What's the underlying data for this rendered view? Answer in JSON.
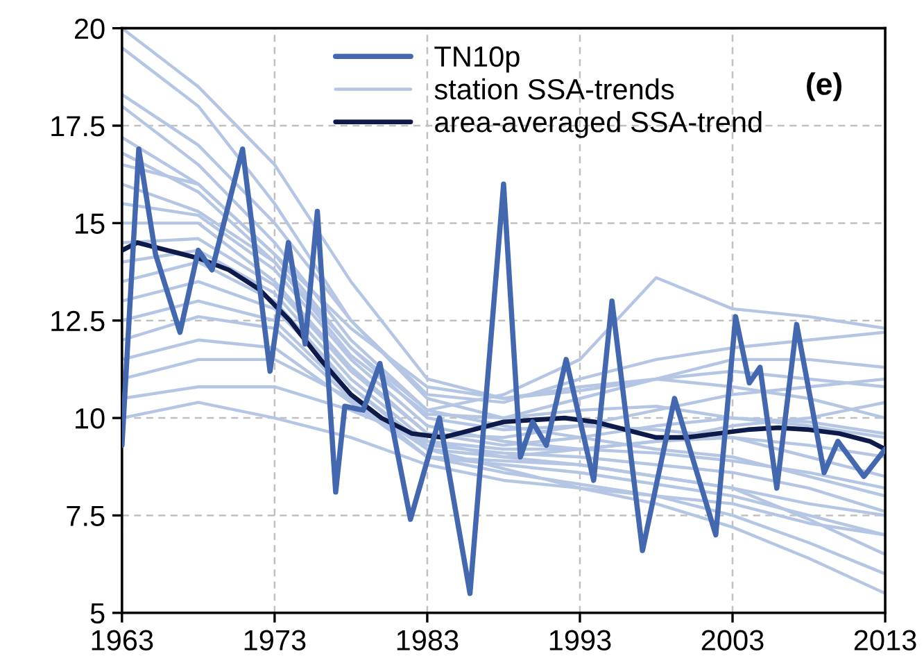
{
  "chart_data": {
    "type": "line",
    "annotations": [
      "(e)"
    ],
    "xlim": [
      1963,
      2013
    ],
    "xticks": [
      1963,
      1973,
      1983,
      1993,
      2003,
      2013
    ],
    "ylim": [
      5,
      20
    ],
    "yticks": [
      5,
      7.5,
      10,
      12.5,
      15,
      17.5,
      20
    ],
    "grid": true,
    "legend": "top",
    "line_style": "solid",
    "marker": "none",
    "series": [
      {
        "name": "TN10p",
        "color": "#4468b0",
        "x": [
          1963,
          1964.1,
          1965.2,
          1966.8,
          1968,
          1968.9,
          1970.9,
          1972.7,
          1973.9,
          1975,
          1975.8,
          1977,
          1977.6,
          1978.8,
          1979.9,
          1981.9,
          1983.8,
          1985.8,
          1988,
          1989.1,
          1989.9,
          1990.8,
          1992.1,
          1993.9,
          1995.1,
          1997.1,
          1999.2,
          2001.9,
          2003.2,
          2004.1,
          2004.8,
          2005.9,
          2007.2,
          2009,
          2009.9,
          2011.6,
          2013
        ],
        "values": [
          9.3,
          16.9,
          14.2,
          12.2,
          14.3,
          13.8,
          16.9,
          11.2,
          14.5,
          11.9,
          15.3,
          8.1,
          10.3,
          10.2,
          11.4,
          7.4,
          10.0,
          5.5,
          16.0,
          9.0,
          9.9,
          9.3,
          11.5,
          8.4,
          13.0,
          6.6,
          10.5,
          7.0,
          12.6,
          10.9,
          11.3,
          8.2,
          12.4,
          8.6,
          9.4,
          8.5,
          9.2
        ]
      },
      {
        "name": "station SSA-trends",
        "color": "#b4c6e4",
        "x": [
          1963,
          1968,
          1973,
          1978,
          1983,
          1988,
          1993,
          1998,
          2003,
          2008,
          2013
        ],
        "values": [
          20,
          18.5,
          16.5,
          13.5,
          11,
          10.5,
          10.8,
          11,
          10.8,
          10.5,
          10
        ]
      },
      {
        "name": "area-averaged SSA-trend",
        "color": "#0d1a4a",
        "x": [
          1963,
          1964,
          1966,
          1968,
          1970,
          1972,
          1974,
          1976,
          1978,
          1980,
          1982,
          1984,
          1986,
          1988,
          1990,
          1992,
          1994,
          1996,
          1998,
          2000,
          2002,
          2004,
          2006,
          2008,
          2010,
          2012,
          2013
        ],
        "values": [
          14.3,
          14.5,
          14.3,
          14.1,
          13.8,
          13.3,
          12.5,
          11.5,
          10.6,
          10.0,
          9.6,
          9.5,
          9.7,
          9.9,
          9.95,
          10.0,
          9.9,
          9.7,
          9.5,
          9.5,
          9.6,
          9.7,
          9.75,
          9.7,
          9.6,
          9.4,
          9.2
        ]
      },
      {
        "color": "#b4c6e4",
        "x": [
          1963,
          1968,
          1973,
          1978,
          1983,
          1988,
          1993,
          1998,
          2003,
          2008,
          2013
        ],
        "values": [
          19.5,
          18,
          15.5,
          12.5,
          10.5,
          10,
          10.2,
          10.3,
          10,
          9.8,
          9.5
        ]
      },
      {
        "color": "#b4c6e4",
        "x": [
          1963,
          1968,
          1973,
          1978,
          1983,
          1988,
          1993,
          1998,
          2003,
          2008,
          2013
        ],
        "values": [
          18.3,
          17,
          15,
          12.5,
          10.6,
          10.4,
          11,
          11.5,
          11.8,
          12,
          12.2
        ]
      },
      {
        "color": "#b4c6e4",
        "x": [
          1963,
          1968,
          1973,
          1978,
          1983,
          1988,
          1993,
          1998,
          2003,
          2008,
          2013
        ],
        "values": [
          18,
          16.5,
          14.5,
          12,
          10.2,
          10.6,
          11.5,
          13.6,
          12.8,
          12.6,
          12.3
        ]
      },
      {
        "color": "#b4c6e4",
        "x": [
          1963,
          1968,
          1973,
          1978,
          1983,
          1988,
          1993,
          1998,
          2003,
          2008,
          2013
        ],
        "values": [
          17.2,
          16,
          14.2,
          11.8,
          10,
          9.7,
          9.8,
          9.7,
          9.5,
          9,
          8.5
        ]
      },
      {
        "color": "#b4c6e4",
        "x": [
          1963,
          1968,
          1973,
          1978,
          1983,
          1988,
          1993,
          1998,
          2003,
          2008,
          2013
        ],
        "values": [
          16.8,
          15.8,
          14,
          11.6,
          10.1,
          10,
          10.5,
          11,
          11.5,
          11.5,
          11.3
        ]
      },
      {
        "color": "#b4c6e4",
        "x": [
          1963,
          1968,
          1973,
          1978,
          1983,
          1988,
          1993,
          1998,
          2003,
          2008,
          2013
        ],
        "values": [
          16,
          15.3,
          14,
          11.8,
          10.2,
          9.8,
          9.5,
          9.2,
          9,
          8.5,
          8
        ]
      },
      {
        "color": "#b4c6e4",
        "x": [
          1963,
          1968,
          1973,
          1978,
          1983,
          1988,
          1993,
          1998,
          2003,
          2008,
          2013
        ],
        "values": [
          15.5,
          15.2,
          13.8,
          11.5,
          9.8,
          9.4,
          9.2,
          9.4,
          9.8,
          10,
          10.4
        ]
      },
      {
        "color": "#b4c6e4",
        "x": [
          1963,
          1968,
          1973,
          1978,
          1983,
          1988,
          1993,
          1998,
          2003,
          2008,
          2013
        ],
        "values": [
          15,
          15,
          13.5,
          11.3,
          9.6,
          9.3,
          9.5,
          9.8,
          10,
          9.9,
          9.6
        ]
      },
      {
        "color": "#b4c6e4",
        "x": [
          1963,
          1968,
          1973,
          1978,
          1983,
          1988,
          1993,
          1998,
          2003,
          2008,
          2013
        ],
        "values": [
          14.5,
          14.6,
          13.4,
          11.2,
          9.6,
          9.5,
          9.8,
          10.2,
          10.6,
          10.8,
          11
        ]
      },
      {
        "color": "#b4c6e4",
        "x": [
          1963,
          1968,
          1973,
          1978,
          1983,
          1988,
          1993,
          1998,
          2003,
          2008,
          2013
        ],
        "values": [
          14,
          14.3,
          13.2,
          11,
          9.4,
          9.2,
          9.2,
          9.1,
          8.9,
          8.6,
          8.2
        ]
      },
      {
        "color": "#b4c6e4",
        "x": [
          1963,
          1968,
          1973,
          1978,
          1983,
          1988,
          1993,
          1998,
          2003,
          2008,
          2013
        ],
        "values": [
          13.5,
          14,
          13,
          10.8,
          9.3,
          9.1,
          9.0,
          8.8,
          8.6,
          8.2,
          7.6
        ]
      },
      {
        "color": "#b4c6e4",
        "x": [
          1963,
          1968,
          1973,
          1978,
          1983,
          1988,
          1993,
          1998,
          2003,
          2008,
          2013
        ],
        "values": [
          13,
          13.5,
          12.8,
          10.8,
          9.2,
          9,
          9.2,
          9.4,
          9.5,
          9.3,
          9
        ]
      },
      {
        "color": "#b4c6e4",
        "x": [
          1963,
          1968,
          1973,
          1978,
          1983,
          1988,
          1993,
          1998,
          2003,
          2008,
          2013
        ],
        "values": [
          12.5,
          13,
          12.5,
          10.6,
          9,
          8.8,
          8.6,
          8.3,
          8,
          7.5,
          7
        ]
      },
      {
        "color": "#b4c6e4",
        "x": [
          1963,
          1968,
          1973,
          1978,
          1983,
          1988,
          1993,
          1998,
          2003,
          2008,
          2013
        ],
        "values": [
          12,
          12.6,
          12.3,
          10.5,
          9,
          8.9,
          8.8,
          8.5,
          8.2,
          7.4,
          6.5
        ]
      },
      {
        "color": "#b4c6e4",
        "x": [
          1963,
          1968,
          1973,
          1978,
          1983,
          1988,
          1993,
          1998,
          2003,
          2008,
          2013
        ],
        "values": [
          11.5,
          12,
          11.8,
          10.4,
          9,
          8.6,
          8.3,
          8,
          7.5,
          6.8,
          6
        ]
      },
      {
        "color": "#b4c6e4",
        "x": [
          1963,
          1968,
          1973,
          1978,
          1983,
          1988,
          1993,
          1998,
          2003,
          2008,
          2013
        ],
        "values": [
          11,
          11.5,
          11.5,
          10.5,
          9.2,
          8.7,
          8.2,
          7.8,
          7.2,
          6.4,
          5.5
        ]
      },
      {
        "color": "#b4c6e4",
        "x": [
          1963,
          1968,
          1973,
          1978,
          1983,
          1988,
          1993,
          1998,
          2003,
          2008,
          2013
        ],
        "values": [
          10.5,
          10.8,
          10.8,
          10.2,
          9.4,
          9,
          8.8,
          8.5,
          8.2,
          7.8,
          7.5
        ]
      },
      {
        "color": "#b4c6e4",
        "x": [
          1963,
          1968,
          1973,
          1978,
          1983,
          1988,
          1993,
          1998,
          2003,
          2008,
          2013
        ],
        "values": [
          10,
          10.4,
          10,
          9.5,
          8.8,
          8.4,
          8.2,
          8,
          7.8,
          7.3,
          7
        ]
      },
      {
        "color": "#b4c6e4",
        "x": [
          1963,
          1968,
          1973,
          1978,
          1983,
          1988,
          1993,
          1998,
          2003,
          2008,
          2013
        ],
        "values": [
          16.5,
          16,
          14.2,
          12.3,
          10.8,
          10.5,
          10.7,
          11,
          11.2,
          11,
          10.8
        ]
      }
    ]
  }
}
